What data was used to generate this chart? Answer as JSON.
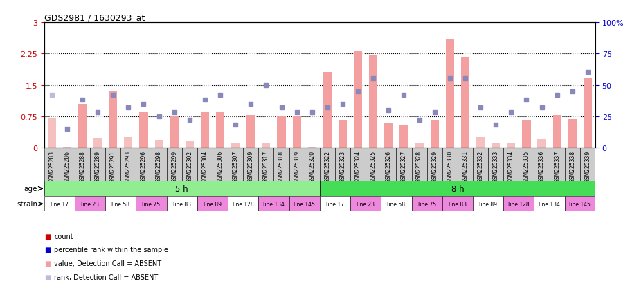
{
  "title": "GDS2981 / 1630293_at",
  "samples": [
    "GSM225283",
    "GSM225286",
    "GSM225288",
    "GSM225289",
    "GSM225291",
    "GSM225293",
    "GSM225296",
    "GSM225298",
    "GSM225299",
    "GSM225302",
    "GSM225304",
    "GSM225306",
    "GSM225307",
    "GSM225309",
    "GSM225317",
    "GSM225318",
    "GSM225319",
    "GSM225320",
    "GSM225322",
    "GSM225323",
    "GSM225324",
    "GSM225325",
    "GSM225326",
    "GSM225327",
    "GSM225328",
    "GSM225329",
    "GSM225330",
    "GSM225331",
    "GSM225332",
    "GSM225333",
    "GSM225334",
    "GSM225335",
    "GSM225336",
    "GSM225337",
    "GSM225338",
    "GSM225339"
  ],
  "bar_values": [
    0.72,
    0.02,
    1.05,
    0.22,
    1.35,
    0.25,
    0.85,
    0.18,
    0.75,
    0.15,
    0.85,
    0.85,
    0.1,
    0.78,
    0.12,
    0.75,
    0.75,
    0.02,
    1.8,
    0.65,
    2.3,
    2.2,
    0.6,
    0.55,
    0.12,
    0.65,
    2.6,
    2.15,
    0.25,
    0.1,
    0.1,
    0.65,
    0.2,
    0.78,
    0.68,
    1.65
  ],
  "bar_absent": [
    true,
    true,
    false,
    true,
    false,
    true,
    false,
    true,
    false,
    true,
    false,
    false,
    true,
    false,
    true,
    false,
    false,
    true,
    false,
    false,
    false,
    false,
    false,
    false,
    true,
    false,
    false,
    false,
    true,
    true,
    true,
    false,
    true,
    false,
    false,
    false
  ],
  "rank_values": [
    42,
    15,
    38,
    28,
    42,
    32,
    35,
    25,
    28,
    22,
    38,
    42,
    18,
    35,
    50,
    32,
    28,
    28,
    32,
    35,
    45,
    55,
    30,
    42,
    22,
    28,
    55,
    55,
    32,
    18,
    28,
    38,
    32,
    42,
    45,
    60
  ],
  "rank_absent": [
    true,
    false,
    false,
    false,
    false,
    false,
    false,
    false,
    false,
    false,
    false,
    false,
    false,
    false,
    false,
    false,
    false,
    false,
    false,
    false,
    false,
    false,
    false,
    false,
    false,
    false,
    false,
    false,
    false,
    false,
    false,
    false,
    false,
    false,
    false,
    false
  ],
  "age_groups": [
    {
      "label": "5 h",
      "start": 0,
      "end": 18,
      "color": "#90EE90"
    },
    {
      "label": "8 h",
      "start": 18,
      "end": 36,
      "color": "#44DD55"
    }
  ],
  "strain_groups": [
    {
      "label": "line 17",
      "start": 0,
      "end": 2,
      "color": "#FFFFFF"
    },
    {
      "label": "line 23",
      "start": 2,
      "end": 4,
      "color": "#EE88DD"
    },
    {
      "label": "line 58",
      "start": 4,
      "end": 6,
      "color": "#FFFFFF"
    },
    {
      "label": "line 75",
      "start": 6,
      "end": 8,
      "color": "#EE88DD"
    },
    {
      "label": "line 83",
      "start": 8,
      "end": 10,
      "color": "#FFFFFF"
    },
    {
      "label": "line 89",
      "start": 10,
      "end": 12,
      "color": "#EE88DD"
    },
    {
      "label": "line 128",
      "start": 12,
      "end": 14,
      "color": "#FFFFFF"
    },
    {
      "label": "line 134",
      "start": 14,
      "end": 16,
      "color": "#EE88DD"
    },
    {
      "label": "line 145",
      "start": 16,
      "end": 18,
      "color": "#EE88DD"
    },
    {
      "label": "line 17",
      "start": 18,
      "end": 20,
      "color": "#FFFFFF"
    },
    {
      "label": "line 23",
      "start": 20,
      "end": 22,
      "color": "#EE88DD"
    },
    {
      "label": "line 58",
      "start": 22,
      "end": 24,
      "color": "#FFFFFF"
    },
    {
      "label": "line 75",
      "start": 24,
      "end": 26,
      "color": "#EE88DD"
    },
    {
      "label": "line 83",
      "start": 26,
      "end": 28,
      "color": "#EE88DD"
    },
    {
      "label": "line 89",
      "start": 28,
      "end": 30,
      "color": "#FFFFFF"
    },
    {
      "label": "line 128",
      "start": 30,
      "end": 32,
      "color": "#EE88DD"
    },
    {
      "label": "line 134",
      "start": 32,
      "end": 34,
      "color": "#FFFFFF"
    },
    {
      "label": "line 145",
      "start": 34,
      "end": 36,
      "color": "#EE88DD"
    }
  ],
  "ylim_left": [
    0,
    3
  ],
  "ylim_right": [
    0,
    100
  ],
  "yticks_left": [
    0,
    0.75,
    1.5,
    2.25,
    3
  ],
  "yticks_right": [
    0,
    25,
    50,
    75,
    100
  ],
  "bar_color_present": "#F4A0A0",
  "bar_color_absent": "#F4C0C0",
  "rank_color_present": "#8888BB",
  "rank_color_absent": "#BBBBDD",
  "bg_color": "#FFFFFF",
  "left_tick_color": "#CC0000",
  "right_tick_color": "#0000CC",
  "xtick_bg": "#CCCCCC",
  "legend": [
    {
      "color": "#CC0000",
      "label": "count"
    },
    {
      "color": "#0000CC",
      "label": "percentile rank within the sample"
    },
    {
      "color": "#F4A0A0",
      "label": "value, Detection Call = ABSENT"
    },
    {
      "color": "#BBBBDD",
      "label": "rank, Detection Call = ABSENT"
    }
  ]
}
